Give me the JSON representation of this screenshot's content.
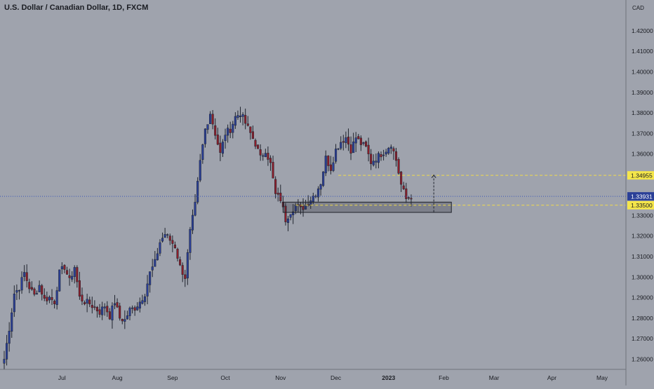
{
  "header": {
    "title": "U.S. Dollar / Canadian Dollar, 1D, FXCM"
  },
  "colors": {
    "background": "#9fa3ad",
    "up_candle": "#2a3f97",
    "down_candle": "#8b1e2b",
    "wick": "#20242e",
    "axis_text": "#1a1c22",
    "dashed_level": "#f2dc4b",
    "current_price_line": "#3a55b8",
    "price_tag": "#2a3f97",
    "level_tag": "#f5e64a"
  },
  "chart_data": {
    "type": "candlestick",
    "title": "U.S. Dollar / Canadian Dollar, 1D, FXCM",
    "currency_label": "CAD",
    "ylim": [
      1.255,
      1.435
    ],
    "y_ticks": [
      "1.26000",
      "1.27000",
      "1.28000",
      "1.29000",
      "1.30000",
      "1.31000",
      "1.32000",
      "1.33000",
      "1.34000",
      "1.35000",
      "1.36000",
      "1.37000",
      "1.38000",
      "1.39000",
      "1.40000",
      "1.41000",
      "1.42000"
    ],
    "x_ticks": [
      {
        "label": "Jul",
        "index": 23
      },
      {
        "label": "Aug",
        "index": 45
      },
      {
        "label": "Sep",
        "index": 67
      },
      {
        "label": "Oct",
        "index": 88
      },
      {
        "label": "Nov",
        "index": 110
      },
      {
        "label": "Dec",
        "index": 132
      },
      {
        "label": "2023",
        "index": 153,
        "bold": true
      },
      {
        "label": "Feb",
        "index": 175
      },
      {
        "label": "Mar",
        "index": 195
      },
      {
        "label": "Apr",
        "index": 218
      },
      {
        "label": "May",
        "index": 238
      }
    ],
    "close_path": [
      [
        0,
        1.26
      ],
      [
        2,
        1.275
      ],
      [
        4,
        1.292
      ],
      [
        6,
        1.295
      ],
      [
        8,
        1.302
      ],
      [
        10,
        1.295
      ],
      [
        12,
        1.291
      ],
      [
        14,
        1.296
      ],
      [
        16,
        1.289
      ],
      [
        18,
        1.29
      ],
      [
        20,
        1.288
      ],
      [
        22,
        1.302
      ],
      [
        24,
        1.305
      ],
      [
        26,
        1.298
      ],
      [
        28,
        1.305
      ],
      [
        30,
        1.29
      ],
      [
        32,
        1.288
      ],
      [
        34,
        1.287
      ],
      [
        36,
        1.285
      ],
      [
        38,
        1.283
      ],
      [
        40,
        1.286
      ],
      [
        42,
        1.281
      ],
      [
        44,
        1.288
      ],
      [
        46,
        1.28
      ],
      [
        48,
        1.279
      ],
      [
        50,
        1.284
      ],
      [
        52,
        1.285
      ],
      [
        54,
        1.288
      ],
      [
        56,
        1.292
      ],
      [
        58,
        1.302
      ],
      [
        60,
        1.307
      ],
      [
        62,
        1.317
      ],
      [
        64,
        1.321
      ],
      [
        66,
        1.318
      ],
      [
        68,
        1.315
      ],
      [
        70,
        1.305
      ],
      [
        72,
        1.3
      ],
      [
        74,
        1.322
      ],
      [
        76,
        1.335
      ],
      [
        78,
        1.356
      ],
      [
        80,
        1.372
      ],
      [
        82,
        1.38
      ],
      [
        84,
        1.37
      ],
      [
        86,
        1.36
      ],
      [
        88,
        1.37
      ],
      [
        90,
        1.372
      ],
      [
        92,
        1.378
      ],
      [
        94,
        1.38
      ],
      [
        96,
        1.375
      ],
      [
        98,
        1.37
      ],
      [
        100,
        1.365
      ],
      [
        102,
        1.358
      ],
      [
        104,
        1.362
      ],
      [
        106,
        1.355
      ],
      [
        108,
        1.34
      ],
      [
        110,
        1.338
      ],
      [
        112,
        1.328
      ],
      [
        114,
        1.332
      ],
      [
        116,
        1.335
      ],
      [
        118,
        1.333
      ],
      [
        120,
        1.335
      ],
      [
        122,
        1.338
      ],
      [
        124,
        1.341
      ],
      [
        126,
        1.346
      ],
      [
        128,
        1.358
      ],
      [
        130,
        1.353
      ],
      [
        132,
        1.362
      ],
      [
        134,
        1.366
      ],
      [
        136,
        1.368
      ],
      [
        138,
        1.362
      ],
      [
        140,
        1.368
      ],
      [
        142,
        1.365
      ],
      [
        144,
        1.363
      ],
      [
        146,
        1.356
      ],
      [
        148,
        1.358
      ],
      [
        150,
        1.36
      ],
      [
        152,
        1.362
      ],
      [
        154,
        1.365
      ],
      [
        156,
        1.357
      ],
      [
        158,
        1.345
      ],
      [
        160,
        1.338
      ],
      [
        162,
        1.3393
      ]
    ],
    "current_price": 1.33931,
    "current_price_label": "1.33931",
    "levels": [
      {
        "name": "resistance",
        "value": 1.34955,
        "label": "1.34955",
        "x_from": 133
      },
      {
        "name": "support",
        "value": 1.335,
        "label": "1.33500",
        "x_from": 116
      }
    ],
    "zone": {
      "x_from": 111,
      "x_to": 178,
      "y_low": 1.3315,
      "y_high": 1.3365
    },
    "arrow": {
      "x": 171,
      "y_from": 1.3317,
      "y_to": 1.3497
    }
  }
}
